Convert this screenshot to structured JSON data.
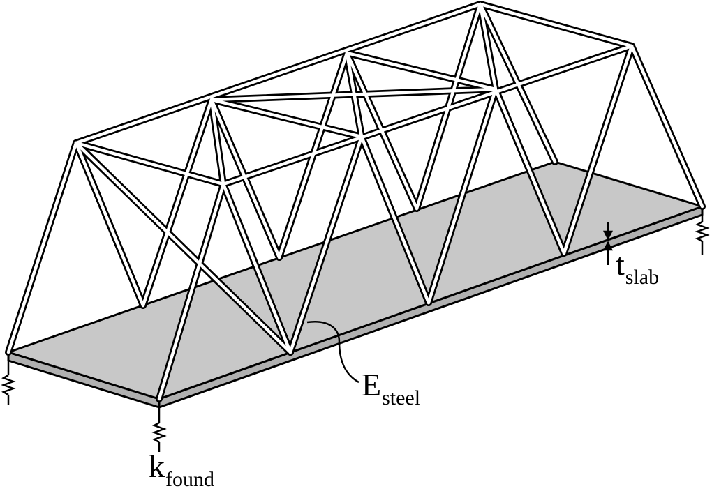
{
  "labels": {
    "foundation_stiffness": {
      "symbol": "k",
      "subscript": "found"
    },
    "steel_modulus": {
      "symbol": "E",
      "subscript": "steel"
    },
    "slab_thickness": {
      "symbol": "t",
      "subscript": "slab"
    }
  },
  "colors": {
    "slab_fill": "#c8c8c8",
    "member_outline": "#000000",
    "member_fill": "#ffffff"
  },
  "icons": [
    "spring-icon",
    "thickness-arrow-icon",
    "leader-line"
  ]
}
